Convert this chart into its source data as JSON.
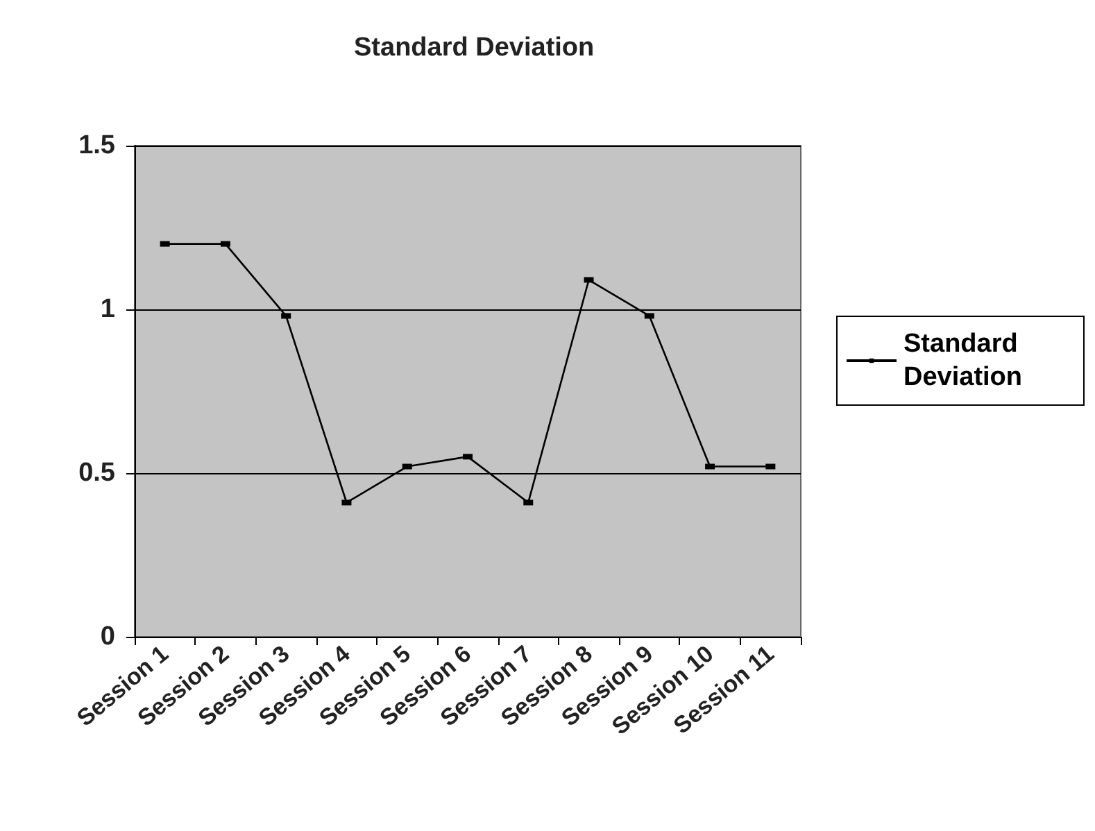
{
  "chart_data": {
    "type": "line",
    "title": "Standard Deviation",
    "categories": [
      "Session 1",
      "Session 2",
      "Session 3",
      "Session 4",
      "Session 5",
      "Session 6",
      "Session 7",
      "Session 8",
      "Session 9",
      "Session 10",
      "Session 11"
    ],
    "series": [
      {
        "name": "Standard Deviation",
        "color": "#000000",
        "values": [
          1.2,
          1.2,
          0.98,
          0.41,
          0.52,
          0.55,
          0.41,
          1.09,
          0.98,
          0.52,
          0.52
        ]
      }
    ],
    "ylim": [
      0,
      1.5
    ],
    "yticks": [
      0,
      0.5,
      1,
      1.5
    ],
    "grid": "y",
    "legend": "right",
    "marker": "square",
    "line_style": "solid"
  }
}
